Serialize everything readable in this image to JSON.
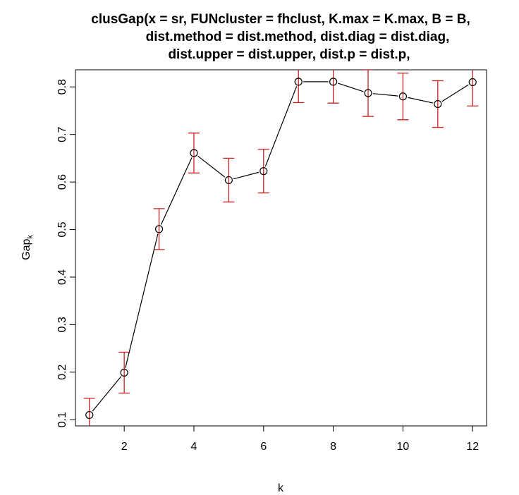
{
  "chart_data": {
    "type": "scatter",
    "title_lines": [
      "clusGap(x = sr, FUNcluster = fhclust, K.max = K.max, B = B,",
      "dist.method = dist.method, dist.diag = dist.diag,",
      "dist.upper = dist.upper, dist.p = dist.p,"
    ],
    "xlabel": "k",
    "ylabel": "Gap",
    "ylabel_subscript": "k",
    "xlim": [
      0.6,
      12.4
    ],
    "ylim": [
      0.087,
      0.836
    ],
    "x_ticks": [
      2,
      4,
      6,
      8,
      10,
      12
    ],
    "y_ticks": [
      0.1,
      0.2,
      0.3,
      0.4,
      0.5,
      0.6,
      0.7,
      0.8
    ],
    "x": [
      1,
      2,
      3,
      4,
      5,
      6,
      7,
      8,
      9,
      10,
      11,
      12
    ],
    "values": [
      0.11,
      0.199,
      0.501,
      0.661,
      0.604,
      0.623,
      0.811,
      0.811,
      0.787,
      0.78,
      0.764,
      0.81
    ],
    "se": [
      0.035,
      0.043,
      0.043,
      0.042,
      0.046,
      0.046,
      0.044,
      0.045,
      0.049,
      0.049,
      0.049,
      0.05
    ],
    "line_color": "#000000",
    "point_color": "#000000",
    "errorbar_color": "#cd1f1f"
  }
}
